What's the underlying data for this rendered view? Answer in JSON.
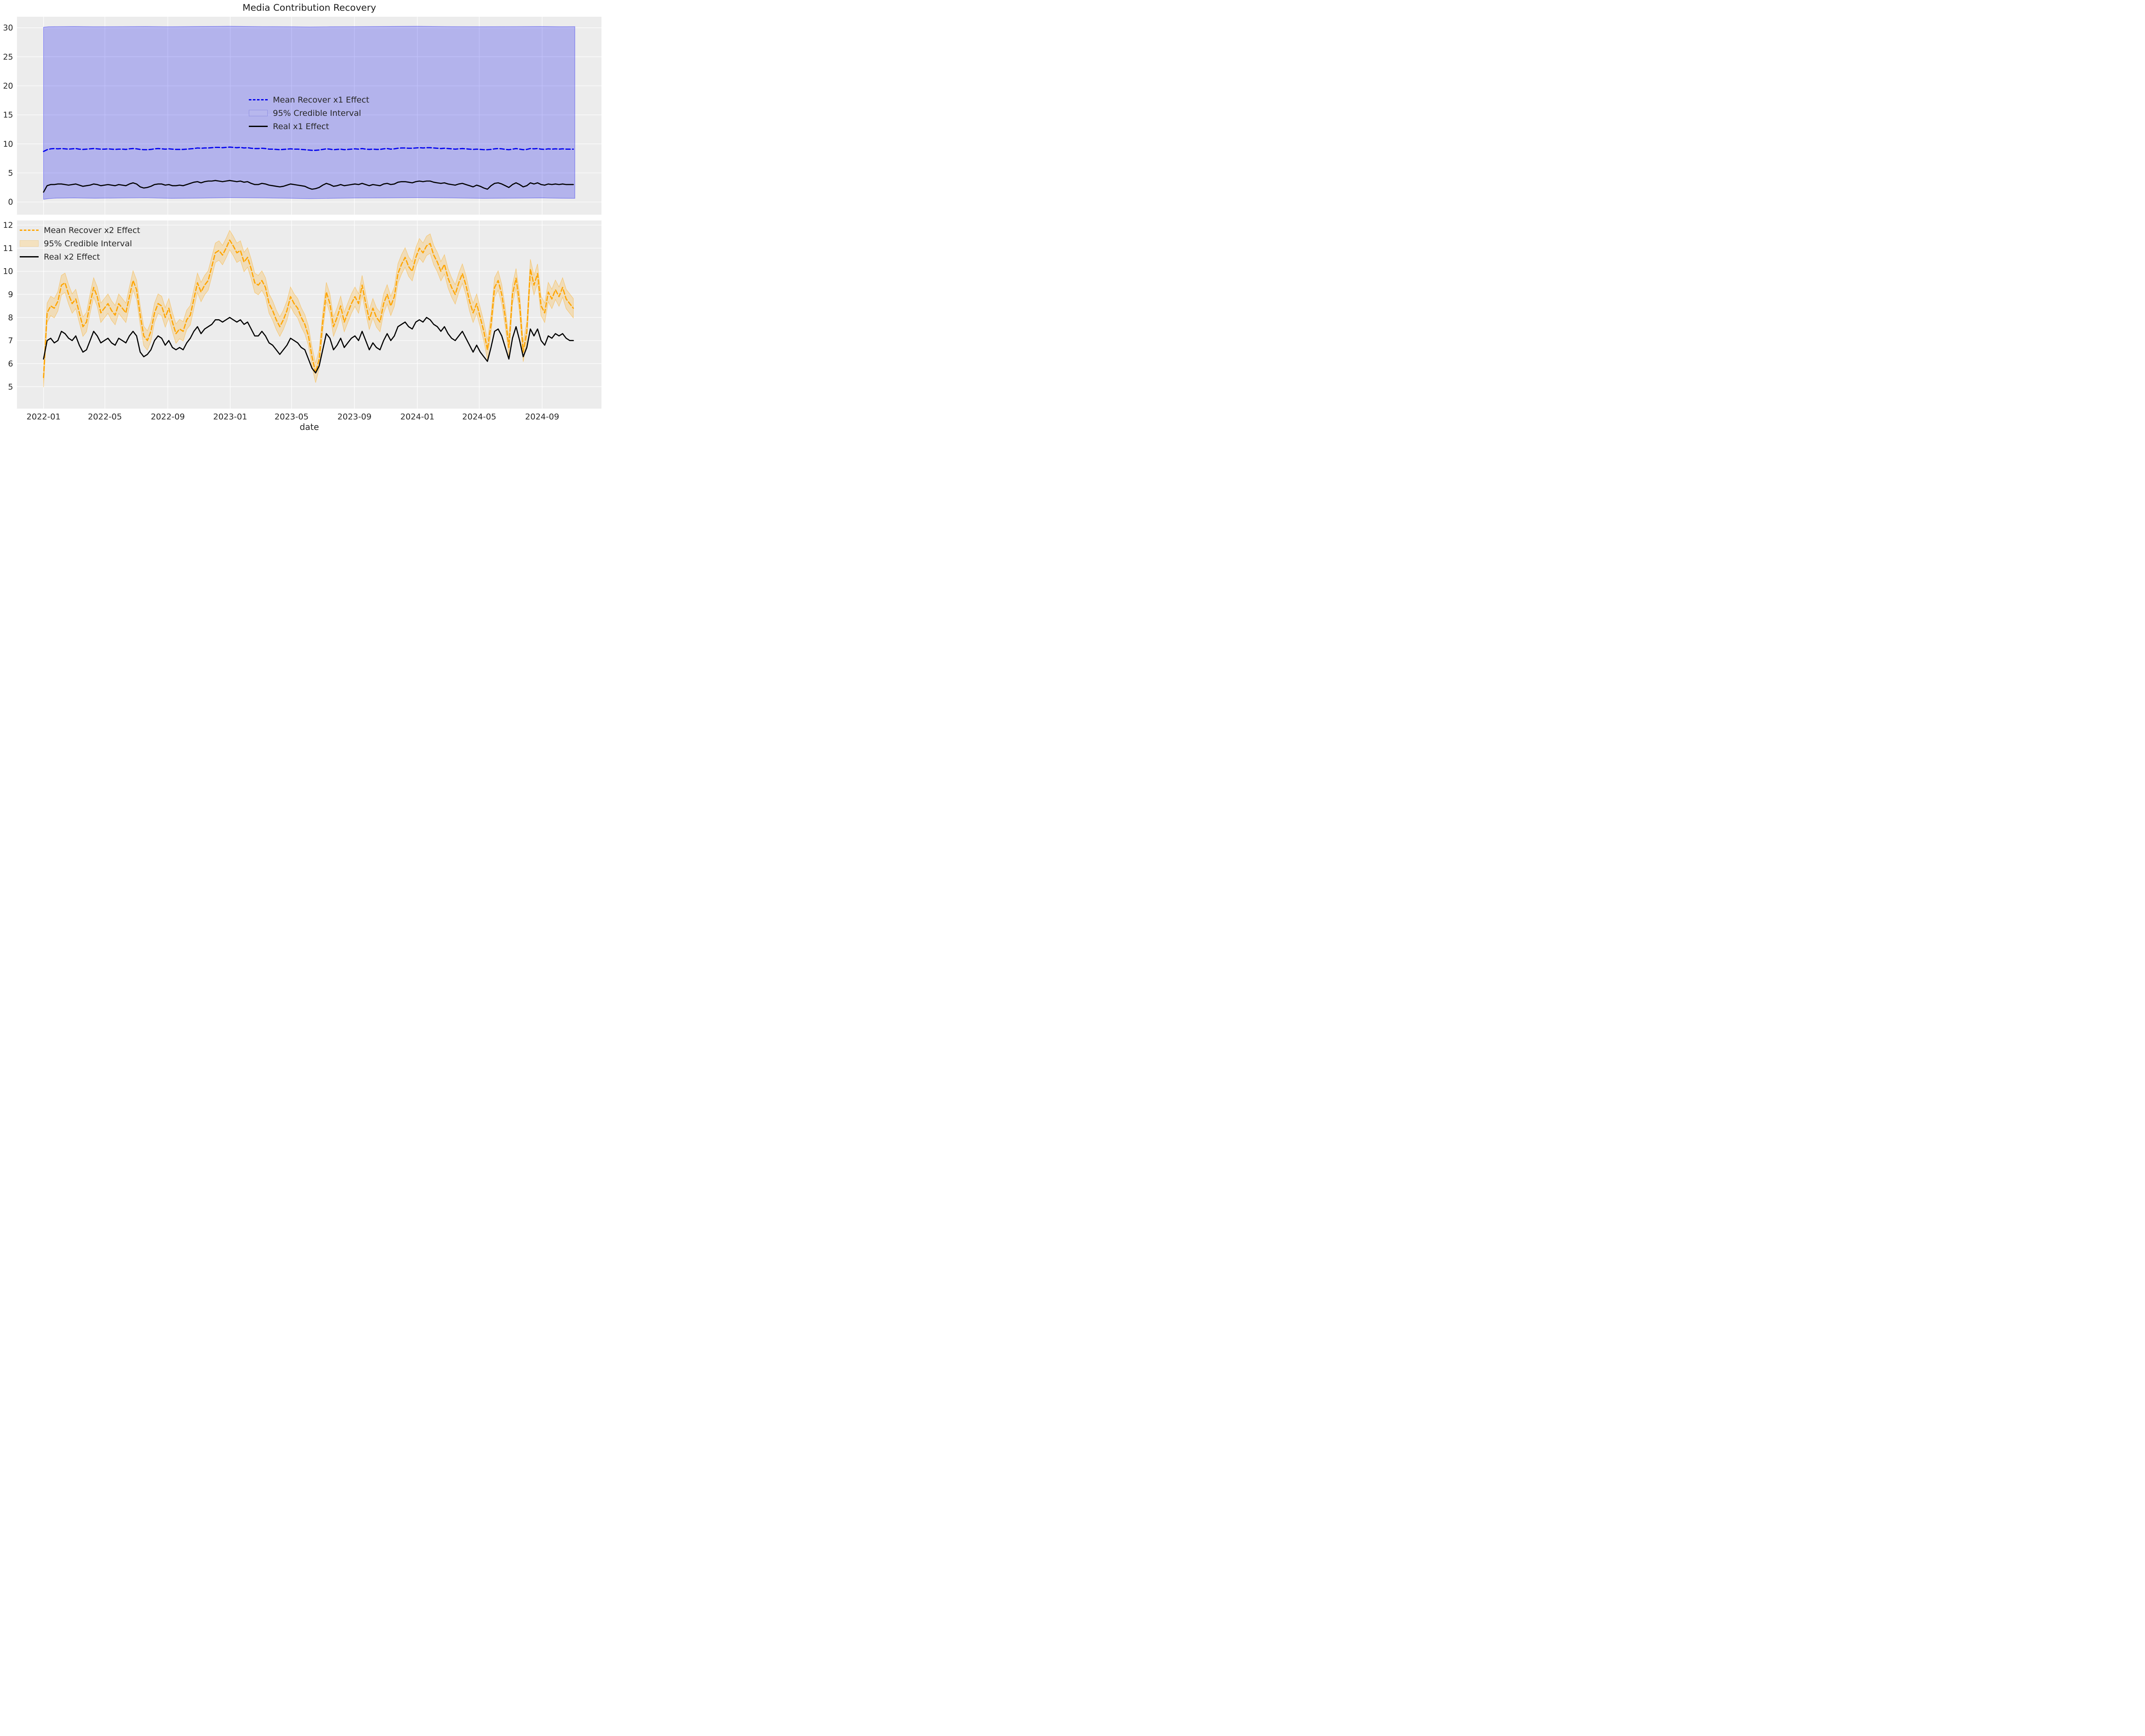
{
  "title": "Media Contribution Recovery",
  "x_axis": {
    "label": "date",
    "x_unit": "days since 2022-01-01",
    "xlim_days": [
      -52,
      1091
    ],
    "ticks": [
      {
        "day": 0,
        "label": "2022-01"
      },
      {
        "day": 120,
        "label": "2022-05"
      },
      {
        "day": 243,
        "label": "2022-09"
      },
      {
        "day": 365,
        "label": "2023-01"
      },
      {
        "day": 485,
        "label": "2023-05"
      },
      {
        "day": 608,
        "label": "2023-09"
      },
      {
        "day": 731,
        "label": "2024-01"
      },
      {
        "day": 852,
        "label": "2024-05"
      },
      {
        "day": 975,
        "label": "2024-09"
      }
    ]
  },
  "styles": {
    "axes_bg": "#ececec",
    "grid": "#ffffff",
    "tick_text": "#262626",
    "blue": "#0000ee",
    "orange": "#ffa500",
    "black": "#000000"
  },
  "chart_data": [
    {
      "id": "x1",
      "type": "line",
      "subplot": "top",
      "ylim": [
        -2.2,
        31.9
      ],
      "yticks": [
        0,
        5,
        10,
        15,
        20,
        25,
        30
      ],
      "legend_labels": [
        "Mean Recover x1 Effect",
        "95% Credible Interval",
        "Real x1 Effect"
      ],
      "x_start_day": 0,
      "x_step_days": 7,
      "band": {
        "kind": "explicit",
        "fill": "rgba(0,0,238,0.24)",
        "edge": "rgba(0,0,238,0.45)",
        "x": [
          0,
          10,
          25,
          60,
          100,
          150,
          200,
          250,
          300,
          365,
          430,
          480,
          520,
          560,
          610,
          660,
          730,
          800,
          860,
          920,
          975,
          1010,
          1039
        ],
        "lower": [
          0.45,
          0.58,
          0.66,
          0.7,
          0.64,
          0.68,
          0.72,
          0.62,
          0.66,
          0.74,
          0.7,
          0.64,
          0.58,
          0.62,
          0.68,
          0.7,
          0.74,
          0.7,
          0.62,
          0.66,
          0.7,
          0.64,
          0.62
        ],
        "upper": [
          30.1,
          30.18,
          30.2,
          30.22,
          30.18,
          30.2,
          30.22,
          30.18,
          30.22,
          30.26,
          30.2,
          30.18,
          30.14,
          30.18,
          30.2,
          30.22,
          30.26,
          30.2,
          30.18,
          30.2,
          30.22,
          30.18,
          30.2
        ]
      },
      "series": [
        {
          "name": "Mean Recover x1 Effect",
          "color": "#0000ee",
          "dash": [
            10,
            5.5
          ],
          "width": 2.8,
          "values": [
            8.7,
            9.0,
            9.15,
            9.2,
            9.15,
            9.2,
            9.15,
            9.1,
            9.15,
            9.2,
            9.1,
            9.05,
            9.1,
            9.15,
            9.2,
            9.15,
            9.1,
            9.1,
            9.15,
            9.1,
            9.05,
            9.1,
            9.1,
            9.05,
            9.15,
            9.2,
            9.15,
            9.05,
            9.0,
            9.0,
            9.05,
            9.15,
            9.2,
            9.15,
            9.1,
            9.15,
            9.1,
            9.05,
            9.05,
            9.05,
            9.1,
            9.15,
            9.2,
            9.3,
            9.25,
            9.3,
            9.3,
            9.35,
            9.4,
            9.4,
            9.35,
            9.4,
            9.45,
            9.4,
            9.35,
            9.4,
            9.3,
            9.35,
            9.25,
            9.2,
            9.2,
            9.25,
            9.2,
            9.1,
            9.1,
            9.05,
            9.0,
            9.05,
            9.1,
            9.15,
            9.1,
            9.1,
            9.05,
            9.0,
            8.95,
            8.9,
            8.9,
            8.95,
            9.05,
            9.15,
            9.1,
            9.0,
            9.05,
            9.1,
            9.0,
            9.05,
            9.1,
            9.15,
            9.1,
            9.2,
            9.1,
            9.05,
            9.1,
            9.05,
            9.05,
            9.15,
            9.2,
            9.1,
            9.15,
            9.25,
            9.3,
            9.3,
            9.25,
            9.25,
            9.3,
            9.35,
            9.3,
            9.35,
            9.35,
            9.3,
            9.25,
            9.2,
            9.25,
            9.2,
            9.15,
            9.1,
            9.15,
            9.2,
            9.15,
            9.1,
            9.05,
            9.1,
            9.05,
            9.0,
            9.0,
            9.05,
            9.15,
            9.2,
            9.15,
            9.05,
            9.0,
            9.1,
            9.2,
            9.1,
            9.0,
            9.05,
            9.2,
            9.15,
            9.2,
            9.1,
            9.05,
            9.15,
            9.1,
            9.15,
            9.1,
            9.15,
            9.1,
            9.1,
            9.1
          ]
        },
        {
          "name": "Real x1 Effect",
          "color": "#000000",
          "dash": null,
          "width": 2.6,
          "values": [
            1.7,
            2.8,
            3.0,
            3.0,
            3.1,
            3.1,
            3.0,
            2.9,
            3.0,
            3.1,
            2.9,
            2.7,
            2.8,
            2.9,
            3.1,
            3.0,
            2.8,
            2.9,
            3.0,
            2.9,
            2.8,
            3.0,
            2.9,
            2.8,
            3.1,
            3.3,
            3.1,
            2.6,
            2.4,
            2.5,
            2.7,
            3.0,
            3.1,
            3.1,
            2.9,
            3.0,
            2.8,
            2.8,
            2.9,
            2.8,
            3.0,
            3.2,
            3.4,
            3.5,
            3.3,
            3.5,
            3.6,
            3.6,
            3.7,
            3.6,
            3.5,
            3.6,
            3.7,
            3.6,
            3.5,
            3.6,
            3.4,
            3.5,
            3.2,
            3.0,
            3.0,
            3.2,
            3.1,
            2.9,
            2.8,
            2.7,
            2.6,
            2.7,
            2.9,
            3.1,
            3.0,
            2.9,
            2.8,
            2.7,
            2.4,
            2.2,
            2.3,
            2.5,
            2.9,
            3.2,
            3.0,
            2.7,
            2.8,
            3.0,
            2.8,
            2.9,
            3.0,
            3.1,
            3.0,
            3.2,
            3.0,
            2.8,
            3.0,
            2.9,
            2.8,
            3.1,
            3.2,
            3.0,
            3.1,
            3.4,
            3.5,
            3.5,
            3.4,
            3.3,
            3.5,
            3.6,
            3.5,
            3.6,
            3.6,
            3.4,
            3.3,
            3.2,
            3.3,
            3.1,
            3.0,
            2.9,
            3.1,
            3.2,
            3.0,
            2.8,
            2.6,
            2.9,
            2.7,
            2.4,
            2.2,
            2.8,
            3.2,
            3.3,
            3.1,
            2.8,
            2.5,
            3.0,
            3.3,
            3.0,
            2.6,
            2.8,
            3.3,
            3.1,
            3.3,
            3.0,
            2.9,
            3.1,
            3.0,
            3.1,
            3.0,
            3.1,
            3.0,
            3.0,
            3.0
          ]
        }
      ]
    },
    {
      "id": "x2",
      "type": "line",
      "subplot": "bottom",
      "ylim": [
        4.05,
        12.2
      ],
      "yticks": [
        5,
        6,
        7,
        8,
        9,
        10,
        11,
        12
      ],
      "legend_labels": [
        "Mean Recover x2 Effect",
        "95% Credible Interval",
        "Real x2 Effect"
      ],
      "x_start_day": 0,
      "x_step_days": 7,
      "band": {
        "kind": "halfwidth",
        "of": "Mean Recover x2 Effect",
        "halfwidth": 0.42,
        "fill": "rgba(255,165,0,0.22)",
        "edge": "rgba(255,165,0,0.45)"
      },
      "series": [
        {
          "name": "Mean Recover x2 Effect",
          "color": "#ffa500",
          "dash": [
            10,
            5.5
          ],
          "width": 2.8,
          "values": [
            5.4,
            8.2,
            8.5,
            8.4,
            8.7,
            9.4,
            9.5,
            9.0,
            8.6,
            8.8,
            8.2,
            7.6,
            7.8,
            8.6,
            9.3,
            8.9,
            8.2,
            8.4,
            8.6,
            8.3,
            8.1,
            8.6,
            8.4,
            8.2,
            8.9,
            9.6,
            9.2,
            8.1,
            7.2,
            7.0,
            7.4,
            8.2,
            8.6,
            8.5,
            8.0,
            8.4,
            7.8,
            7.3,
            7.5,
            7.4,
            7.9,
            8.1,
            8.8,
            9.5,
            9.1,
            9.4,
            9.6,
            10.2,
            10.8,
            10.9,
            10.7,
            11.0,
            11.35,
            11.1,
            10.8,
            10.9,
            10.4,
            10.6,
            10.1,
            9.5,
            9.4,
            9.6,
            9.3,
            8.6,
            8.3,
            7.9,
            7.6,
            7.9,
            8.3,
            8.9,
            8.6,
            8.4,
            8.0,
            7.7,
            7.2,
            6.3,
            5.6,
            6.2,
            7.8,
            9.1,
            8.6,
            7.6,
            8.0,
            8.5,
            7.8,
            8.2,
            8.6,
            8.9,
            8.6,
            9.4,
            8.6,
            7.9,
            8.4,
            8.0,
            7.8,
            8.6,
            9.0,
            8.5,
            8.9,
            9.9,
            10.3,
            10.6,
            10.2,
            10.0,
            10.6,
            11.0,
            10.8,
            11.1,
            11.2,
            10.7,
            10.4,
            10.0,
            10.3,
            9.7,
            9.3,
            9.0,
            9.5,
            9.9,
            9.4,
            8.7,
            8.2,
            8.6,
            8.0,
            7.4,
            6.6,
            7.7,
            9.3,
            9.6,
            9.0,
            8.0,
            6.7,
            9.0,
            9.7,
            8.6,
            6.5,
            7.4,
            10.1,
            9.4,
            9.9,
            8.5,
            8.2,
            9.1,
            8.8,
            9.2,
            8.9,
            9.3,
            8.8,
            8.6,
            8.4
          ]
        },
        {
          "name": "Real x2 Effect",
          "color": "#000000",
          "dash": null,
          "width": 2.6,
          "values": [
            6.2,
            7.0,
            7.1,
            6.9,
            7.0,
            7.4,
            7.3,
            7.1,
            7.0,
            7.2,
            6.8,
            6.5,
            6.6,
            7.0,
            7.4,
            7.2,
            6.9,
            7.0,
            7.1,
            6.9,
            6.8,
            7.1,
            7.0,
            6.9,
            7.2,
            7.4,
            7.2,
            6.5,
            6.3,
            6.4,
            6.6,
            7.0,
            7.2,
            7.1,
            6.8,
            7.0,
            6.7,
            6.6,
            6.7,
            6.6,
            6.9,
            7.1,
            7.4,
            7.6,
            7.3,
            7.5,
            7.6,
            7.7,
            7.9,
            7.9,
            7.8,
            7.9,
            8.0,
            7.9,
            7.8,
            7.9,
            7.7,
            7.8,
            7.5,
            7.2,
            7.2,
            7.4,
            7.2,
            6.9,
            6.8,
            6.6,
            6.4,
            6.6,
            6.8,
            7.1,
            7.0,
            6.9,
            6.7,
            6.6,
            6.2,
            5.8,
            5.6,
            5.9,
            6.6,
            7.3,
            7.1,
            6.6,
            6.8,
            7.1,
            6.7,
            6.9,
            7.1,
            7.2,
            7.0,
            7.4,
            7.0,
            6.6,
            6.9,
            6.7,
            6.6,
            7.0,
            7.3,
            7.0,
            7.2,
            7.6,
            7.7,
            7.8,
            7.6,
            7.5,
            7.8,
            7.9,
            7.8,
            8.0,
            7.9,
            7.7,
            7.6,
            7.4,
            7.6,
            7.3,
            7.1,
            7.0,
            7.2,
            7.4,
            7.1,
            6.8,
            6.5,
            6.8,
            6.5,
            6.3,
            6.1,
            6.7,
            7.4,
            7.5,
            7.2,
            6.7,
            6.2,
            7.1,
            7.6,
            7.0,
            6.3,
            6.7,
            7.5,
            7.2,
            7.5,
            7.0,
            6.8,
            7.2,
            7.1,
            7.3,
            7.2,
            7.3,
            7.1,
            7.0,
            7.0
          ]
        }
      ]
    }
  ]
}
